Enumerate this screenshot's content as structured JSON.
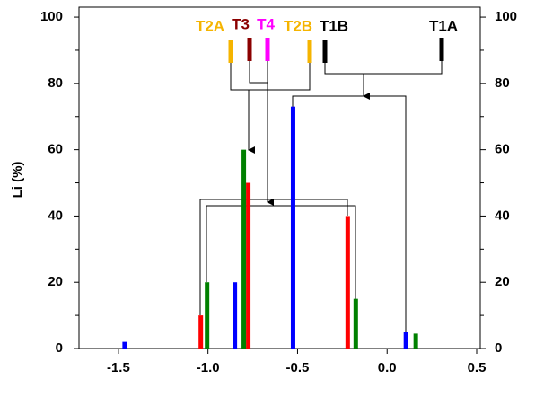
{
  "chart_data": {
    "type": "bar",
    "y_label": "Li (%)",
    "xlim": [
      -1.72,
      0.52
    ],
    "ylim": [
      0,
      103
    ],
    "xticks": [
      -1.5,
      {
        "value": -1.0,
        "label": "-1.0"
      },
      -0.5,
      {
        "value": 0.0,
        "label": "0.0"
      },
      0.5
    ],
    "yticks": [
      0,
      20,
      40,
      60,
      80,
      100
    ],
    "series": [
      {
        "color": "#0000ff",
        "x": [
          -1.465,
          -0.85,
          -0.525,
          0.105
        ],
        "values": [
          2,
          20,
          73,
          5
        ]
      },
      {
        "color": "#ff0000",
        "x": [
          -1.04,
          -0.775,
          -0.22
        ],
        "values": [
          10,
          50,
          40
        ]
      },
      {
        "color": "#008000",
        "x": [
          -1.005,
          -0.8,
          -0.175,
          0.16
        ],
        "values": [
          20,
          60,
          15,
          4.5
        ]
      }
    ],
    "annotations": [
      {
        "text": "T2A",
        "color": "#f5b400"
      },
      {
        "text": "T3",
        "color": "#8b0000"
      },
      {
        "text": "T4",
        "color": "#ff00ff"
      },
      {
        "text": "T2B",
        "color": "#f5b400"
      },
      {
        "text": "T1B",
        "color": "#000000"
      },
      {
        "text": "T1A",
        "color": "#000000"
      }
    ]
  }
}
